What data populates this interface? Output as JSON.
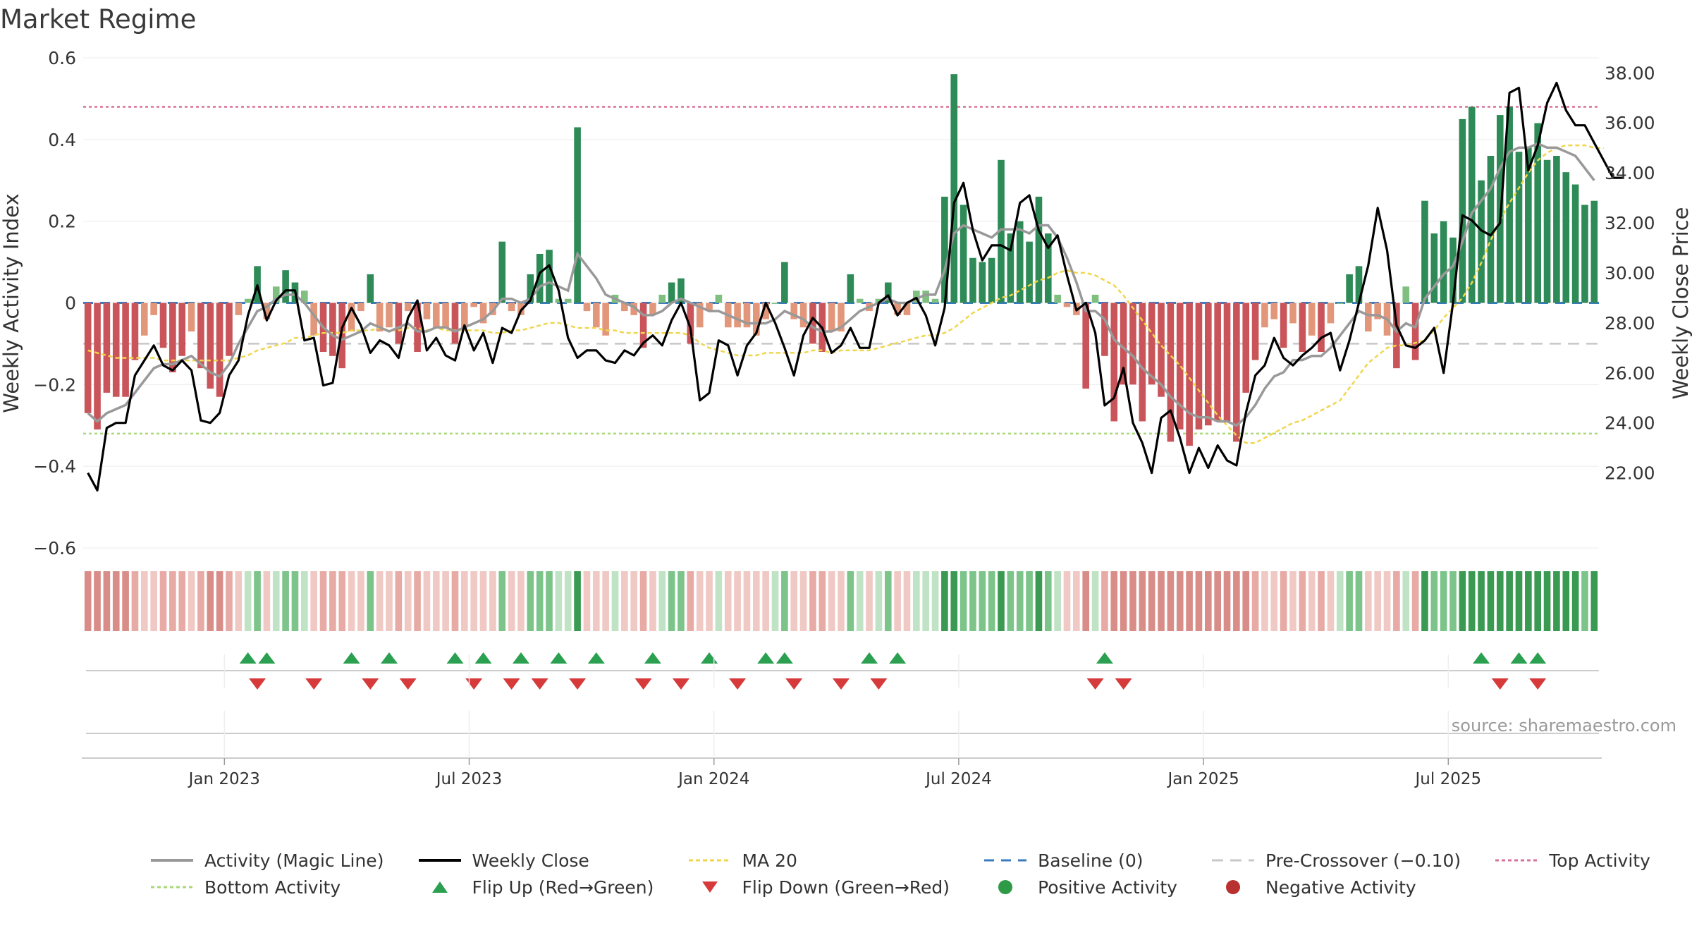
{
  "title": "Market Regime",
  "source": "source: sharemaestro.com",
  "chart_data": {
    "type": "bar",
    "title": "Market Regime",
    "ylabel": "Weekly Activity Index",
    "y2label": "Weekly Close Price",
    "ylim": [
      -0.6,
      0.6
    ],
    "y2lim": [
      19.0,
      38.6
    ],
    "yticks": [
      "0.6",
      "0.4",
      "0.2",
      "0",
      "−0.2",
      "−0.4",
      "−0.6"
    ],
    "y2ticks": [
      "38.00",
      "36.00",
      "34.00",
      "32.00",
      "30.00",
      "28.00",
      "26.00",
      "24.00",
      "22.00"
    ],
    "xticks": [
      "Jan 2023",
      "Jul 2023",
      "Jan 2024",
      "Jul 2024",
      "Jan 2025",
      "Jul 2025"
    ],
    "xtick_weeks": [
      15,
      41,
      67,
      93,
      119,
      145
    ],
    "top_activity": 0.48,
    "bottom_activity": -0.32,
    "pre_crossover": -0.1,
    "baseline": 0,
    "activity": [
      -0.27,
      -0.31,
      -0.22,
      -0.23,
      -0.23,
      -0.14,
      -0.08,
      -0.03,
      -0.11,
      -0.17,
      -0.13,
      -0.07,
      -0.16,
      -0.21,
      -0.23,
      -0.13,
      -0.03,
      0.01,
      0.09,
      -0.04,
      0.04,
      0.08,
      0.05,
      0.03,
      -0.08,
      -0.12,
      -0.13,
      -0.16,
      -0.07,
      -0.02,
      0.07,
      -0.07,
      -0.06,
      -0.1,
      -0.02,
      -0.12,
      -0.04,
      -0.06,
      -0.06,
      -0.1,
      -0.06,
      -0.01,
      -0.05,
      -0.03,
      0.15,
      -0.02,
      -0.03,
      0.07,
      0.12,
      0.13,
      0.01,
      0.01,
      0.43,
      -0.02,
      -0.06,
      -0.08,
      0.02,
      -0.02,
      -0.03,
      -0.11,
      -0.03,
      0.02,
      0.05,
      0.06,
      -0.1,
      -0.06,
      -0.02,
      0.02,
      -0.06,
      -0.06,
      -0.06,
      -0.08,
      -0.04,
      0.0,
      0.1,
      -0.04,
      -0.06,
      -0.1,
      -0.12,
      -0.07,
      -0.07,
      0.07,
      0.01,
      -0.02,
      0.01,
      0.05,
      -0.03,
      -0.03,
      0.03,
      0.03,
      0.01,
      0.26,
      0.56,
      0.24,
      0.11,
      0.1,
      0.11,
      0.35,
      0.17,
      0.2,
      0.15,
      0.26,
      0.17,
      0.02,
      -0.01,
      -0.03,
      -0.21,
      0.02,
      -0.13,
      -0.29,
      -0.2,
      -0.2,
      -0.29,
      -0.2,
      -0.23,
      -0.34,
      -0.31,
      -0.35,
      -0.31,
      -0.3,
      -0.29,
      -0.29,
      -0.34,
      -0.22,
      -0.14,
      -0.06,
      -0.04,
      -0.11,
      -0.05,
      -0.12,
      -0.08,
      -0.12,
      -0.05,
      0.0,
      0.07,
      0.09,
      -0.07,
      -0.04,
      -0.08,
      -0.16,
      0.04,
      -0.14,
      0.25,
      0.17,
      0.2,
      0.16,
      0.45,
      0.48,
      0.3,
      0.36,
      0.46,
      0.48,
      0.37,
      0.38,
      0.44,
      0.35,
      0.36,
      0.32,
      0.29,
      0.24,
      0.25
    ],
    "activity_colors": {
      "strong_positive": "#2e8b57",
      "weak_positive": "#7fbf7f",
      "strong_negative": "#c9555a",
      "weak_negative": "#e3977a"
    },
    "magic_line": [
      -0.27,
      -0.29,
      -0.27,
      -0.26,
      -0.25,
      -0.22,
      -0.19,
      -0.16,
      -0.15,
      -0.15,
      -0.14,
      -0.13,
      -0.15,
      -0.17,
      -0.18,
      -0.15,
      -0.1,
      -0.06,
      -0.02,
      -0.01,
      0.01,
      0.02,
      0.02,
      0.0,
      -0.03,
      -0.06,
      -0.08,
      -0.09,
      -0.08,
      -0.07,
      -0.05,
      -0.06,
      -0.07,
      -0.06,
      -0.05,
      -0.07,
      -0.07,
      -0.06,
      -0.06,
      -0.07,
      -0.06,
      -0.05,
      -0.04,
      -0.02,
      0.01,
      0.01,
      0.0,
      0.01,
      0.04,
      0.05,
      0.04,
      0.03,
      0.12,
      0.09,
      0.06,
      0.02,
      0.01,
      0.0,
      -0.01,
      -0.03,
      -0.03,
      -0.02,
      0.0,
      0.01,
      0.0,
      -0.01,
      -0.02,
      -0.02,
      -0.03,
      -0.04,
      -0.05,
      -0.05,
      -0.05,
      -0.04,
      -0.02,
      -0.03,
      -0.04,
      -0.06,
      -0.07,
      -0.07,
      -0.06,
      -0.04,
      -0.02,
      -0.01,
      0.0,
      0.01,
      0.0,
      0.0,
      0.01,
      0.02,
      0.02,
      0.08,
      0.17,
      0.19,
      0.18,
      0.17,
      0.16,
      0.18,
      0.18,
      0.18,
      0.17,
      0.19,
      0.19,
      0.16,
      0.11,
      0.05,
      -0.02,
      -0.02,
      -0.04,
      -0.09,
      -0.11,
      -0.13,
      -0.16,
      -0.18,
      -0.2,
      -0.23,
      -0.25,
      -0.27,
      -0.28,
      -0.28,
      -0.29,
      -0.29,
      -0.3,
      -0.28,
      -0.25,
      -0.21,
      -0.18,
      -0.17,
      -0.14,
      -0.14,
      -0.13,
      -0.13,
      -0.11,
      -0.08,
      -0.05,
      -0.02,
      -0.03,
      -0.03,
      -0.04,
      -0.07,
      -0.05,
      -0.06,
      0.01,
      0.04,
      0.07,
      0.09,
      0.15,
      0.22,
      0.25,
      0.28,
      0.33,
      0.37,
      0.38,
      0.38,
      0.39,
      0.38,
      0.38,
      0.37,
      0.36,
      0.33,
      0.3
    ],
    "weekly_close": [
      22.0,
      21.3,
      23.8,
      24.0,
      24.0,
      25.9,
      26.5,
      27.1,
      26.3,
      26.1,
      26.5,
      26.1,
      24.1,
      24.0,
      24.4,
      25.9,
      26.5,
      28.3,
      29.5,
      28.1,
      28.9,
      29.3,
      29.3,
      27.3,
      27.4,
      25.5,
      25.6,
      27.8,
      28.6,
      27.9,
      26.8,
      27.3,
      27.1,
      26.6,
      28.2,
      28.9,
      26.9,
      27.4,
      26.7,
      26.5,
      27.9,
      26.9,
      27.6,
      26.4,
      27.8,
      27.6,
      28.5,
      28.9,
      30.0,
      30.3,
      29.3,
      27.4,
      26.6,
      26.9,
      26.9,
      26.5,
      26.4,
      26.9,
      26.7,
      27.2,
      27.5,
      27.1,
      28.1,
      28.8,
      27.8,
      24.9,
      25.2,
      27.3,
      27.1,
      25.9,
      27.1,
      27.6,
      28.8,
      28.0,
      27.0,
      25.9,
      27.5,
      28.2,
      27.8,
      26.8,
      27.1,
      27.8,
      27.0,
      27.0,
      28.8,
      29.1,
      28.3,
      28.8,
      29.0,
      28.3,
      27.1,
      28.6,
      32.8,
      33.6,
      31.7,
      30.5,
      31.1,
      31.1,
      30.9,
      32.8,
      33.1,
      31.7,
      31.0,
      31.5,
      29.9,
      28.5,
      28.8,
      27.6,
      24.7,
      25.0,
      26.2,
      24.0,
      23.2,
      22.0,
      24.2,
      24.5,
      23.4,
      22.0,
      23.0,
      22.2,
      23.1,
      22.5,
      22.3,
      24.4,
      25.9,
      26.3,
      27.4,
      26.6,
      26.3,
      26.7,
      27.0,
      27.4,
      27.6,
      26.1,
      27.3,
      28.8,
      30.3,
      32.6,
      30.9,
      27.9,
      27.1,
      27.0,
      27.3,
      27.8,
      26.0,
      28.8,
      32.3,
      32.1,
      31.7,
      31.5,
      32.0,
      37.2,
      37.4,
      34.1,
      35.1,
      36.8,
      37.6,
      36.5,
      35.9,
      35.9,
      35.2,
      34.5,
      33.8,
      33.8
    ],
    "ma20": [
      26.9,
      26.8,
      26.7,
      26.6,
      26.6,
      26.6,
      26.6,
      26.6,
      26.5,
      26.5,
      26.5,
      26.5,
      26.5,
      26.5,
      26.5,
      26.5,
      26.6,
      26.7,
      26.9,
      27.0,
      27.1,
      27.2,
      27.4,
      27.4,
      27.5,
      27.6,
      27.6,
      27.6,
      27.7,
      27.7,
      27.7,
      27.8,
      27.7,
      27.7,
      27.8,
      27.8,
      27.7,
      27.8,
      27.7,
      27.7,
      27.7,
      27.7,
      27.7,
      27.6,
      27.6,
      27.7,
      27.7,
      27.8,
      27.9,
      28.0,
      28.0,
      27.9,
      27.8,
      27.8,
      27.8,
      27.7,
      27.7,
      27.6,
      27.6,
      27.6,
      27.6,
      27.6,
      27.6,
      27.6,
      27.5,
      27.2,
      27.0,
      26.9,
      26.8,
      26.7,
      26.7,
      26.7,
      26.8,
      26.8,
      26.8,
      26.8,
      26.8,
      26.9,
      26.9,
      26.8,
      26.9,
      26.9,
      26.9,
      26.9,
      27.0,
      27.1,
      27.2,
      27.3,
      27.4,
      27.5,
      27.5,
      27.6,
      27.8,
      28.1,
      28.4,
      28.6,
      28.8,
      29.0,
      29.1,
      29.3,
      29.5,
      29.7,
      29.8,
      30.0,
      30.1,
      30.0,
      30.0,
      29.9,
      29.7,
      29.5,
      29.1,
      28.6,
      28.1,
      27.6,
      27.1,
      26.7,
      26.3,
      25.8,
      25.3,
      24.8,
      24.3,
      23.9,
      23.5,
      23.2,
      23.2,
      23.4,
      23.6,
      23.8,
      24.0,
      24.1,
      24.3,
      24.5,
      24.7,
      24.9,
      25.4,
      25.9,
      26.4,
      26.7,
      27.0,
      27.1,
      27.1,
      27.2,
      27.3,
      27.7,
      28.2,
      28.6,
      29.0,
      29.6,
      30.4,
      31.3,
      32.1,
      32.8,
      33.4,
      34.0,
      34.5,
      34.8,
      35.0,
      35.1,
      35.1,
      35.1,
      35.0,
      35.0
    ],
    "flip_up_weeks": [
      17,
      19,
      28,
      32,
      39,
      42,
      46,
      50,
      54,
      60,
      66,
      72,
      74,
      83,
      86,
      108,
      148,
      152,
      154
    ],
    "flip_down_weeks": [
      18,
      24,
      30,
      34,
      41,
      45,
      48,
      52,
      59,
      63,
      69,
      75,
      80,
      84,
      107,
      110,
      150,
      154
    ],
    "series": [
      {
        "name": "Activity (Magic Line)",
        "color": "#999999"
      },
      {
        "name": "Weekly Close",
        "color": "#000000"
      },
      {
        "name": "MA 20",
        "color": "#f0d64b"
      },
      {
        "name": "Baseline (0)",
        "color": "#3a7bbf"
      },
      {
        "name": "Pre-Crossover (−0.10)",
        "color": "#c8c8c8"
      },
      {
        "name": "Top Activity",
        "color": "#d9729a"
      },
      {
        "name": "Bottom Activity",
        "color": "#a8d878"
      },
      {
        "name": "Flip Up (Red→Green)",
        "color": "#2aa050"
      },
      {
        "name": "Flip Down (Green→Red)",
        "color": "#d63a3a"
      },
      {
        "name": "Positive Activity",
        "color": "#2e9a46"
      },
      {
        "name": "Negative Activity",
        "color": "#b83030"
      }
    ]
  }
}
